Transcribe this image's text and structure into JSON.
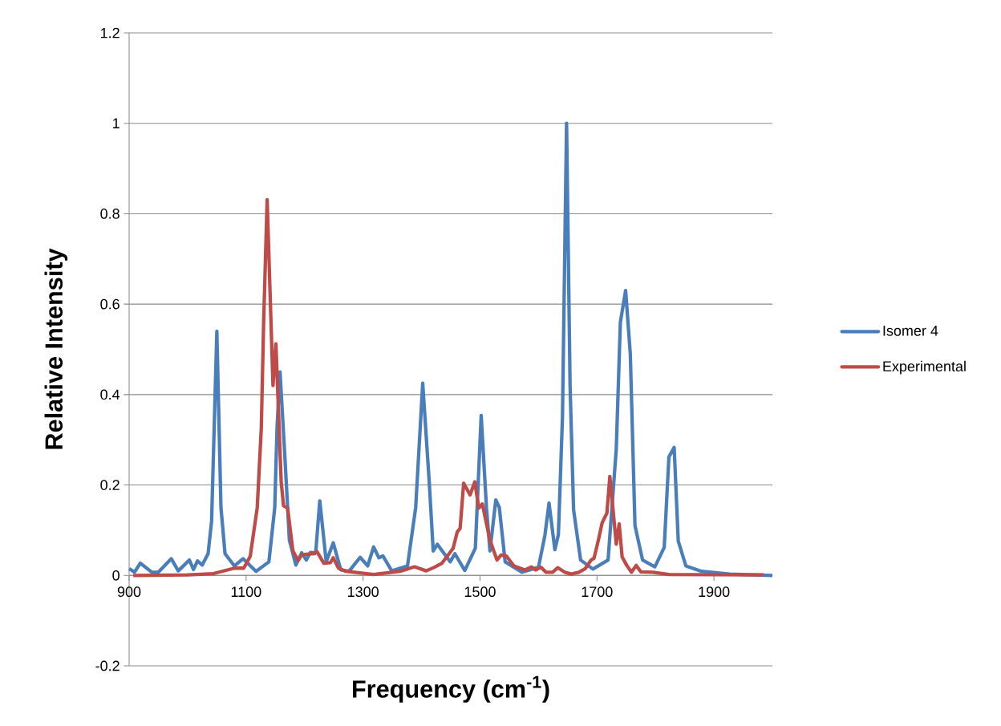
{
  "chart_data": {
    "type": "line",
    "xlabel": "Frequency (cm$^{-1}$)",
    "ylabel": "Relative Intensity",
    "xlim": [
      900,
      2000
    ],
    "ylim": [
      -0.2,
      1.2
    ],
    "xticks": [
      900,
      1100,
      1300,
      1500,
      1700,
      1900
    ],
    "yticks": [
      -0.2,
      0,
      0.2,
      0.4,
      0.6,
      0.8,
      1,
      1.2
    ],
    "grid": "y",
    "legend": "right",
    "marker": "none",
    "line_style": "solid",
    "series": [
      {
        "name": "Isomer 4",
        "color": "#4a7ebb",
        "x": [
          900,
          909,
          919,
          939,
          950,
          972,
          984,
          1003,
          1010,
          1017,
          1025,
          1035,
          1041,
          1050,
          1057,
          1064,
          1080,
          1095,
          1117,
          1139,
          1149,
          1153,
          1158,
          1166,
          1174,
          1185,
          1195,
          1203,
          1210,
          1219,
          1226,
          1237,
          1249,
          1262,
          1276,
          1295,
          1308,
          1318,
          1327,
          1334,
          1349,
          1376,
          1390,
          1402,
          1413,
          1420,
          1427,
          1449,
          1457,
          1474,
          1492,
          1502,
          1511,
          1517,
          1527,
          1533,
          1543,
          1572,
          1600,
          1611,
          1618,
          1628,
          1634,
          1641,
          1648,
          1654,
          1660,
          1672,
          1693,
          1719,
          1733,
          1740,
          1749,
          1757,
          1765,
          1778,
          1799,
          1815,
          1823,
          1832,
          1839,
          1852,
          1879,
          1927,
          2000
        ],
        "values": [
          0.015,
          0.007,
          0.027,
          0.007,
          0.007,
          0.037,
          0.01,
          0.034,
          0.013,
          0.032,
          0.023,
          0.048,
          0.12,
          0.54,
          0.15,
          0.048,
          0.021,
          0.037,
          0.009,
          0.03,
          0.15,
          0.33,
          0.45,
          0.27,
          0.078,
          0.023,
          0.05,
          0.034,
          0.051,
          0.05,
          0.165,
          0.03,
          0.072,
          0.012,
          0.009,
          0.04,
          0.021,
          0.063,
          0.039,
          0.043,
          0.01,
          0.021,
          0.15,
          0.425,
          0.21,
          0.054,
          0.069,
          0.03,
          0.048,
          0.011,
          0.06,
          0.354,
          0.15,
          0.054,
          0.167,
          0.15,
          0.03,
          0.007,
          0.018,
          0.089,
          0.16,
          0.057,
          0.09,
          0.35,
          1.0,
          0.42,
          0.145,
          0.034,
          0.014,
          0.034,
          0.28,
          0.56,
          0.63,
          0.49,
          0.11,
          0.034,
          0.019,
          0.062,
          0.262,
          0.283,
          0.076,
          0.021,
          0.009,
          0.003,
          0
        ]
      },
      {
        "name": "Experimental",
        "color": "#be4b48",
        "x": [
          907,
          1000,
          1044,
          1080,
          1096,
          1107,
          1119,
          1126,
          1130,
          1136,
          1146,
          1151,
          1160,
          1164,
          1171,
          1180,
          1189,
          1195,
          1217,
          1221,
          1233,
          1244,
          1249,
          1258,
          1271,
          1318,
          1363,
          1388,
          1408,
          1422,
          1435,
          1454,
          1461,
          1466,
          1472,
          1483,
          1491,
          1498,
          1504,
          1517,
          1529,
          1536,
          1545,
          1558,
          1577,
          1588,
          1595,
          1604,
          1613,
          1624,
          1633,
          1645,
          1656,
          1669,
          1680,
          1690,
          1695,
          1702,
          1709,
          1717,
          1722,
          1727,
          1733,
          1738,
          1743,
          1751,
          1759,
          1767,
          1775,
          1796,
          1823,
          1985
        ],
        "values": [
          0,
          0.001,
          0.004,
          0.016,
          0.016,
          0.042,
          0.149,
          0.326,
          0.56,
          0.831,
          0.42,
          0.512,
          0.207,
          0.154,
          0.149,
          0.054,
          0.033,
          0.046,
          0.048,
          0.053,
          0.027,
          0.028,
          0.039,
          0.016,
          0.009,
          0.002,
          0.009,
          0.019,
          0.01,
          0.018,
          0.027,
          0.06,
          0.096,
          0.104,
          0.204,
          0.178,
          0.207,
          0.149,
          0.158,
          0.078,
          0.034,
          0.045,
          0.043,
          0.021,
          0.012,
          0.019,
          0.012,
          0.018,
          0.007,
          0.007,
          0.017,
          0.007,
          0.003,
          0.007,
          0.015,
          0.034,
          0.038,
          0.076,
          0.117,
          0.138,
          0.219,
          0.152,
          0.069,
          0.114,
          0.041,
          0.022,
          0.007,
          0.022,
          0.008,
          0.007,
          0.002,
          0.001
        ]
      }
    ]
  }
}
